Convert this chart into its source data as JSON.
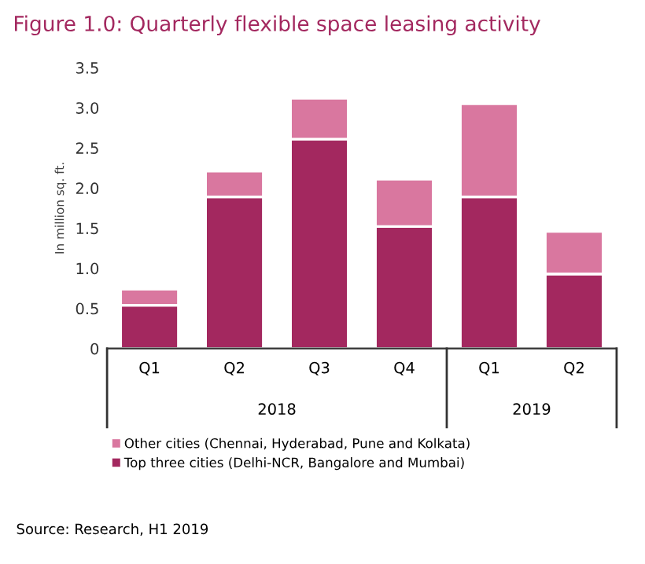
{
  "chart_data": {
    "type": "bar",
    "title": "Figure 1.0: Quarterly flexible space leasing activity",
    "ylabel": "In million sq. ft.",
    "categories": [
      "Q1",
      "Q2",
      "Q3",
      "Q4",
      "Q1",
      "Q2"
    ],
    "series": [
      {
        "name": "Top three cities (Delhi-NCR, Bangalore and Mumbai)",
        "color": "#a3285f",
        "values": [
          0.54,
          1.89,
          2.61,
          1.52,
          1.89,
          0.93
        ]
      },
      {
        "name": "Other cities (Chennai, Hyderabad, Pune and Kolkata)",
        "color": "#d9779f",
        "values": [
          0.2,
          0.32,
          0.51,
          0.59,
          1.16,
          0.53
        ]
      }
    ],
    "stacked": true,
    "ylim": [
      0,
      3.5
    ],
    "yticks": [
      0,
      {
        "value": 0.5,
        "label": "0.5"
      },
      {
        "value": 1,
        "label": "1.0"
      },
      {
        "value": 1.5,
        "label": "1.5"
      },
      {
        "value": 2,
        "label": "2.0"
      },
      {
        "value": 2.5,
        "label": "2.5"
      },
      {
        "value": 3,
        "label": "3.0"
      },
      {
        "value": 3.5,
        "label": "3.5"
      }
    ],
    "grid": false,
    "legend": "bottom",
    "annotations": [
      "2018",
      "2019",
      "Source: Research, H1 2019"
    ]
  }
}
